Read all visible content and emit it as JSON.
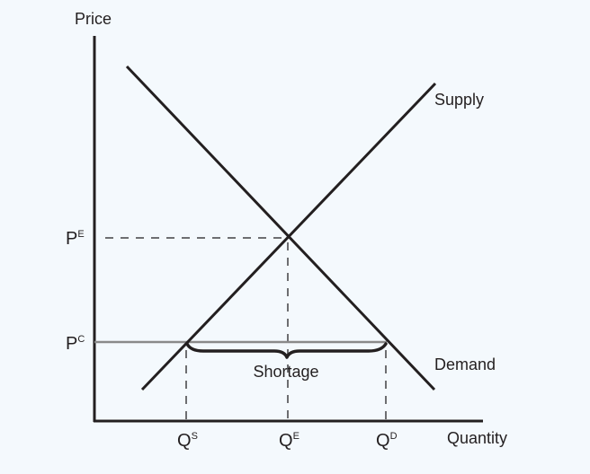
{
  "axes": {
    "y_label": "Price",
    "x_label": "Quantity"
  },
  "curves": {
    "supply_label": "Supply",
    "demand_label": "Demand"
  },
  "price_ticks": {
    "equilibrium": {
      "base": "P",
      "sup": "E"
    },
    "ceiling": {
      "base": "P",
      "sup": "C"
    }
  },
  "quantity_ticks": {
    "supplied": {
      "base": "Q",
      "sup": "S"
    },
    "equilibrium": {
      "base": "Q",
      "sup": "E"
    },
    "demanded": {
      "base": "Q",
      "sup": "D"
    }
  },
  "annotations": {
    "gap_label": "Shortage"
  },
  "colors": {
    "background": "#f4f9fd",
    "ink": "#231f20",
    "price_control_line": "#8a8a8a",
    "guide_lines": "#6d6e71"
  }
}
